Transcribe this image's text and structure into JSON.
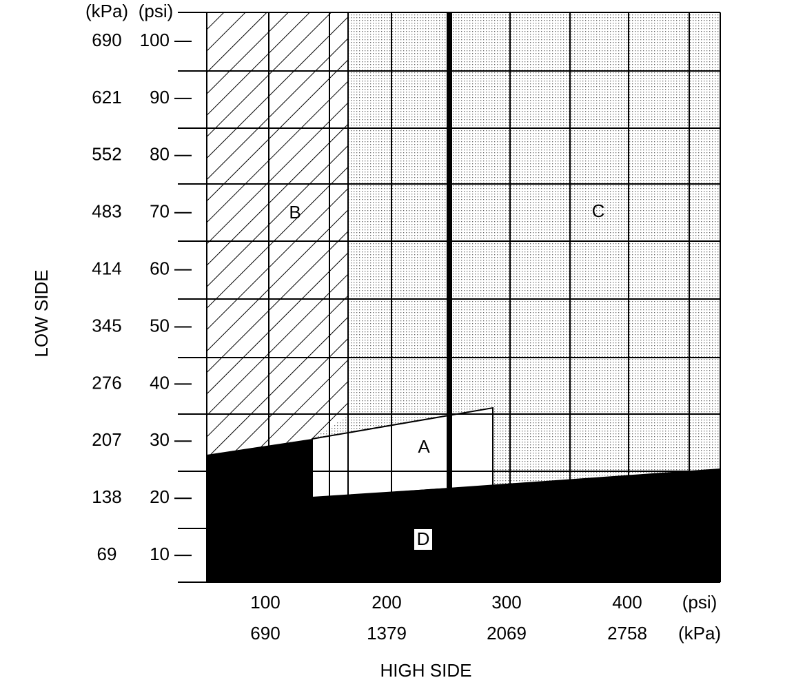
{
  "y_axis": {
    "title": "LOW SIDE",
    "unit_labels": [
      "(kPa)",
      "(psi)"
    ],
    "ticks": [
      {
        "kpa": "690",
        "psi": "100"
      },
      {
        "kpa": "621",
        "psi": "90"
      },
      {
        "kpa": "552",
        "psi": "80"
      },
      {
        "kpa": "483",
        "psi": "70"
      },
      {
        "kpa": "414",
        "psi": "60"
      },
      {
        "kpa": "345",
        "psi": "50"
      },
      {
        "kpa": "276",
        "psi": "40"
      },
      {
        "kpa": "207",
        "psi": "30"
      },
      {
        "kpa": "138",
        "psi": "20"
      },
      {
        "kpa": "69",
        "psi": "10"
      }
    ]
  },
  "x_axis": {
    "title": "HIGH SIDE",
    "unit_labels": [
      "(psi)",
      "(kPa)"
    ],
    "ticks": [
      {
        "psi": "100",
        "kpa": "690"
      },
      {
        "psi": "200",
        "kpa": "1379"
      },
      {
        "psi": "300",
        "kpa": "2069"
      },
      {
        "psi": "400",
        "kpa": "2758"
      }
    ]
  },
  "regions": {
    "a": "A",
    "b": "B",
    "c": "C",
    "d": "D"
  }
}
